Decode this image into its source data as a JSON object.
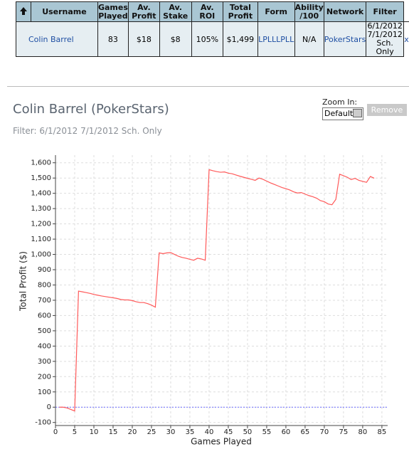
{
  "table": {
    "header": [
      "Username",
      "Games Played",
      "Av. Profit",
      "Av. Stake",
      "Av. ROI",
      "Total Profit",
      "Form",
      "Ability /100",
      "Network",
      "Filter"
    ],
    "rows": [
      [
        "Colin Barrel",
        "83",
        "$18",
        "$8",
        "105%",
        "$1,499",
        "LPLLLPLL",
        "N/A",
        "PokerStars",
        [
          "6/1/2012",
          "7/1/2012",
          "Sch. Only"
        ],
        "x"
      ]
    ]
  },
  "controls": {
    "zoom_label": "Zoom In:",
    "zoom_value": "Default",
    "remove_button": "Remove"
  },
  "chart_data": {
    "type": "line",
    "title": "Colin Barrel (PokerStars)",
    "subtitle": "Filter: 6/1/2012 7/1/2012 Sch. Only",
    "x_label": "Games Played",
    "y_label": "Total Profit ($)",
    "x": [
      1,
      2,
      3,
      4,
      5,
      6,
      7,
      8,
      9,
      10,
      11,
      12,
      13,
      14,
      15,
      16,
      17,
      18,
      19,
      20,
      21,
      22,
      23,
      24,
      25,
      26,
      27,
      28,
      29,
      30,
      31,
      32,
      33,
      34,
      35,
      36,
      37,
      38,
      39,
      40,
      41,
      42,
      43,
      44,
      45,
      46,
      47,
      48,
      49,
      50,
      51,
      52,
      53,
      54,
      55,
      56,
      57,
      58,
      59,
      60,
      61,
      62,
      63,
      64,
      65,
      66,
      67,
      68,
      69,
      70,
      71,
      72,
      73,
      74,
      75,
      76,
      77,
      78,
      79,
      80,
      81,
      82,
      83
    ],
    "values": [
      0,
      0,
      -5,
      -15,
      -25,
      760,
      755,
      750,
      745,
      738,
      733,
      728,
      724,
      720,
      716,
      712,
      705,
      702,
      702,
      698,
      690,
      685,
      685,
      678,
      668,
      655,
      1010,
      1005,
      1010,
      1012,
      1000,
      988,
      980,
      975,
      968,
      962,
      975,
      970,
      962,
      1555,
      1548,
      1542,
      1538,
      1540,
      1532,
      1528,
      1520,
      1512,
      1505,
      1498,
      1492,
      1485,
      1500,
      1492,
      1480,
      1468,
      1458,
      1448,
      1438,
      1430,
      1422,
      1410,
      1402,
      1405,
      1395,
      1385,
      1378,
      1368,
      1352,
      1345,
      1330,
      1325,
      1360,
      1525,
      1515,
      1505,
      1490,
      1498,
      1485,
      1478,
      1472,
      1510,
      1499
    ],
    "color": "#ff5a5a",
    "reference_line": {
      "y": 0,
      "color": "#6a6aff"
    },
    "xlim": [
      0,
      86.5
    ],
    "xticks": [
      0,
      5,
      10,
      15,
      20,
      25,
      30,
      35,
      40,
      45,
      50,
      55,
      60,
      65,
      70,
      75,
      80,
      85
    ],
    "ylim": [
      -120,
      1650
    ],
    "yticks": [
      -100,
      0,
      100,
      200,
      300,
      400,
      500,
      600,
      700,
      800,
      900,
      {
        "value": 1000,
        "label": "1,000"
      },
      {
        "value": 1100,
        "label": "1,100"
      },
      {
        "value": 1200,
        "label": "1,200"
      },
      {
        "value": 1300,
        "label": "1,300"
      },
      {
        "value": 1400,
        "label": "1,400"
      },
      {
        "value": 1500,
        "label": "1,500"
      },
      {
        "value": 1600,
        "label": "1,600"
      }
    ],
    "grid": true
  }
}
